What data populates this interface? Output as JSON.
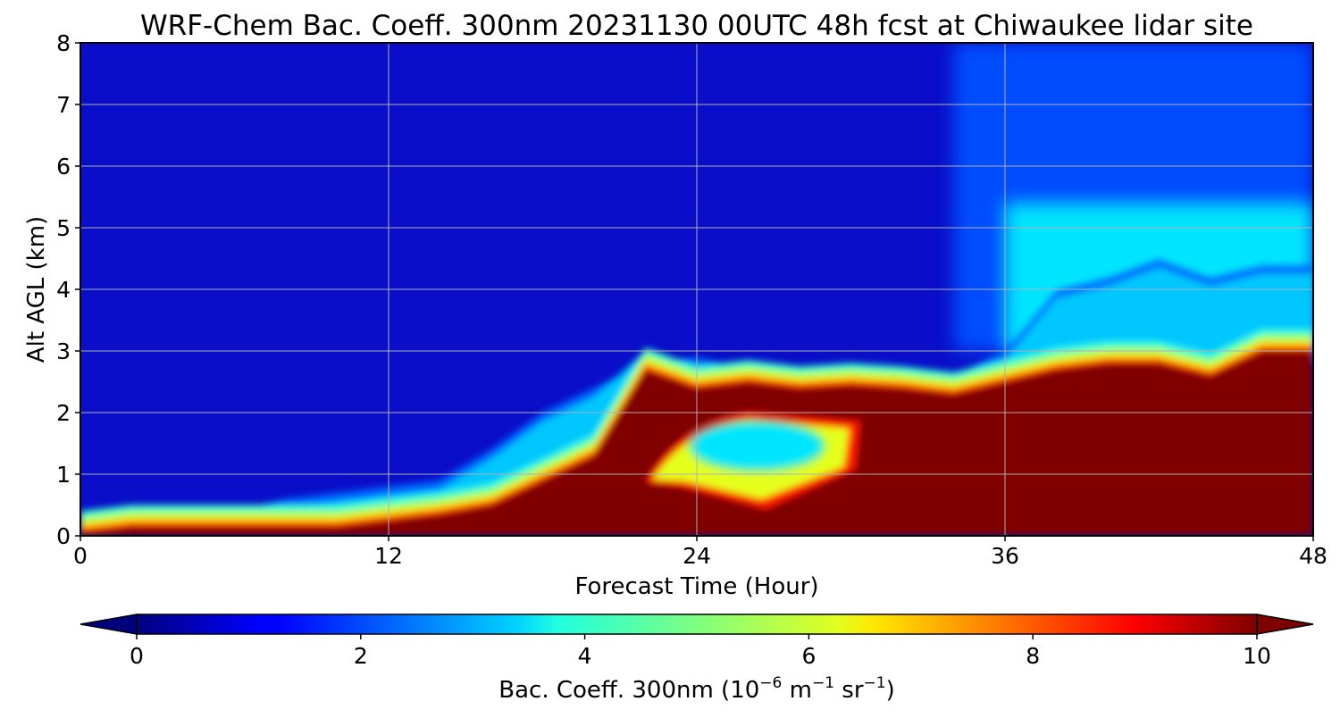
{
  "chart_data": {
    "type": "heatmap",
    "title": "WRF-Chem Bac. Coeff. 300nm  20231130 00UTC 48h fcst at Chiwaukee lidar site",
    "xlabel": "Forecast Time (Hour)",
    "ylabel": "Alt AGL (km)",
    "xlim": [
      0,
      48
    ],
    "ylim": [
      0,
      8
    ],
    "x_ticks": [
      "0",
      "12",
      "24",
      "36",
      "48"
    ],
    "y_ticks": [
      "0",
      "1",
      "2",
      "3",
      "4",
      "5",
      "6",
      "7",
      "8"
    ],
    "grid": true,
    "colorbar": {
      "label_main": "Bac. Coeff. 300nm  (10",
      "label_exp1": "−6",
      "label_mid": " m",
      "label_exp2": "−1",
      "label_mid2": " sr",
      "label_exp3": "−1",
      "label_end": ")",
      "range": [
        0,
        10
      ],
      "extend": "both",
      "orientation": "horizontal",
      "colormap": "jet",
      "ticks": [
        "0",
        "2",
        "4",
        "6",
        "8",
        "10"
      ]
    },
    "forecast_hours": [
      0,
      2,
      4,
      6,
      8,
      10,
      12,
      14,
      16,
      18,
      20,
      22,
      24,
      26,
      28,
      30,
      32,
      34,
      36,
      38,
      40,
      42,
      44,
      46,
      48
    ],
    "high_layer_top_km": [
      0.05,
      0.15,
      0.15,
      0.15,
      0.15,
      0.15,
      0.25,
      0.35,
      0.5,
      0.9,
      1.3,
      2.7,
      2.4,
      2.5,
      2.4,
      2.45,
      2.4,
      2.3,
      2.5,
      2.7,
      2.8,
      2.8,
      2.6,
      3.0,
      3.0
    ],
    "aerosol_layer_top_km": [
      0.3,
      0.4,
      0.4,
      0.4,
      0.6,
      0.7,
      0.8,
      0.9,
      1.4,
      2.0,
      2.4,
      2.8,
      2.9,
      2.7,
      2.6,
      2.6,
      2.6,
      2.6,
      3.0,
      4.0,
      4.2,
      4.5,
      4.2,
      4.4,
      4.4
    ],
    "clean_pocket": {
      "hours": [
        22,
        30
      ],
      "altitude_km": [
        0.8,
        2.0
      ],
      "value_range": [
        3,
        7
      ]
    },
    "upper_plume": {
      "hours": [
        34,
        48
      ],
      "altitude_km": [
        3,
        8
      ],
      "value_range": [
        2,
        6
      ]
    },
    "background_value": 1.0,
    "saturated_value": 10
  }
}
